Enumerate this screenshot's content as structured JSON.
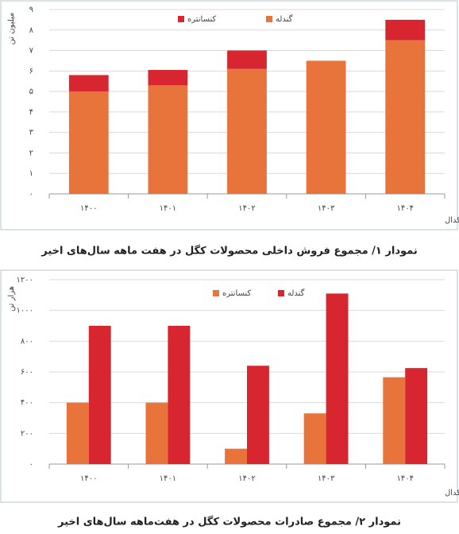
{
  "chart_data": [
    {
      "type": "bar",
      "stacked": true,
      "y_label": "میلیون تن",
      "source": "منبع: کدال",
      "caption": "نمودار ۱/ مجموع فروش داخلی محصولات کگل در هفت ماهه سال‌های اخیر",
      "categories": [
        "۱۴۰۰",
        "۱۴۰۱",
        "۱۴۰۲",
        "۱۴۰۳",
        "۱۴۰۴"
      ],
      "series": [
        {
          "name": "گندله",
          "color": "#e8743b",
          "values": [
            5.0,
            5.3,
            6.1,
            6.5,
            7.5
          ]
        },
        {
          "name": "کنسانتره",
          "color": "#d7262f",
          "values": [
            0.8,
            0.75,
            0.9,
            null,
            1.0
          ]
        }
      ],
      "ylim": [
        0,
        9
      ],
      "yticks": [
        {
          "value": 0,
          "label": "۰"
        },
        {
          "value": 1,
          "label": "۱"
        },
        {
          "value": 2,
          "label": "۲"
        },
        {
          "value": 3,
          "label": "۳"
        },
        {
          "value": 4,
          "label": "۴"
        },
        {
          "value": 5,
          "label": "۵"
        },
        {
          "value": 6,
          "label": "۶"
        },
        {
          "value": 7,
          "label": "۷"
        },
        {
          "value": 8,
          "label": "۸"
        },
        {
          "value": 9,
          "label": "۹"
        }
      ],
      "grid": true,
      "legend": "top"
    },
    {
      "type": "bar",
      "stacked": false,
      "y_label": "هزار تن",
      "source": "منبع: کدال",
      "caption": "نمودار ۲/ مجموع صادرات محصولات کگل در هفت‌ماهه سال‌های اخیر",
      "categories": [
        "۱۴۰۰",
        "۱۴۰۱",
        "۱۴۰۲",
        "۱۴۰۳",
        "۱۴۰۴"
      ],
      "series": [
        {
          "name": "کنسانتره",
          "color": "#e8743b",
          "values": [
            400,
            400,
            100,
            330,
            565
          ]
        },
        {
          "name": "گندله",
          "color": "#d7262f",
          "values": [
            900,
            900,
            640,
            1110,
            625
          ]
        }
      ],
      "ylim": [
        0,
        1200
      ],
      "yticks": [
        {
          "value": 0,
          "label": "۰"
        },
        {
          "value": 200,
          "label": "۲۰۰"
        },
        {
          "value": 400,
          "label": "۴۰۰"
        },
        {
          "value": 600,
          "label": "۶۰۰"
        },
        {
          "value": 800,
          "label": "۸۰۰"
        },
        {
          "value": 1000,
          "label": "۱۰۰۰"
        },
        {
          "value": 1200,
          "label": "۱۲۰۰"
        }
      ],
      "grid": true,
      "legend": "top"
    }
  ]
}
